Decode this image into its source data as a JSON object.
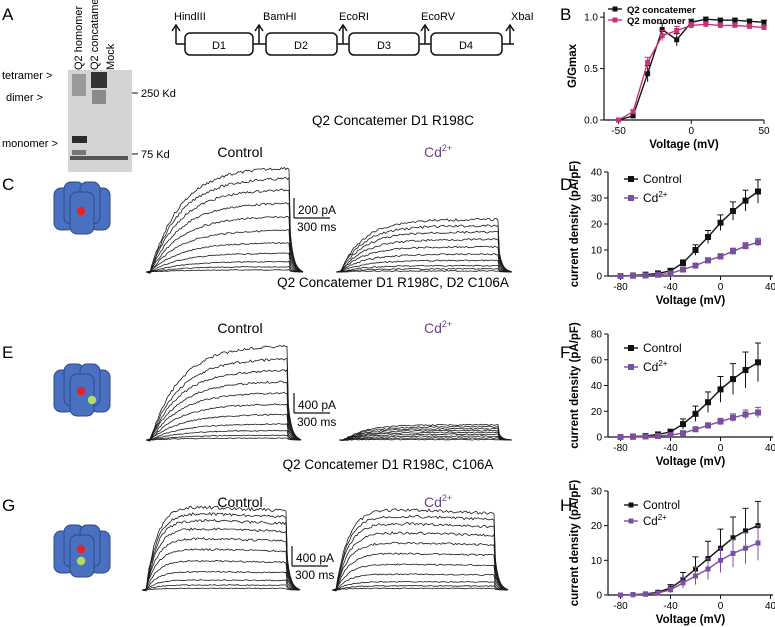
{
  "panels": {
    "A": "A",
    "B": "B",
    "C": "C",
    "D": "D",
    "E": "E",
    "F": "F",
    "G": "G",
    "H": "H"
  },
  "western": {
    "lanes": [
      "Q2 homomer",
      "Q2 concatamer",
      "Mock"
    ],
    "band_labels": [
      "tetramer >",
      "dimer >",
      "monomer >"
    ],
    "markers": [
      "250 Kd",
      "75 Kd"
    ]
  },
  "construct": {
    "sites": [
      "HindIII",
      "BamHI",
      "EcoRI",
      "EcoRV",
      "XbaI"
    ],
    "domains": [
      "D1",
      "D2",
      "D3",
      "D4"
    ]
  },
  "traces": [
    {
      "title": "Q2 Concatemer D1 R198C",
      "control_label": "Control",
      "cd_label": "Cd",
      "cd_sup": "2+",
      "scale_current": "200 pA",
      "scale_time": "300 ms",
      "control_sweeps": [
        0.02,
        0.05,
        0.1,
        0.18,
        0.28,
        0.4,
        0.53,
        0.66,
        0.79,
        0.9,
        1.0
      ],
      "cd_sweeps": [
        0.01,
        0.03,
        0.06,
        0.11,
        0.17,
        0.24,
        0.31,
        0.38,
        0.44,
        0.5
      ]
    },
    {
      "title": "Q2 Concatemer D1 R198C, D2 C106A",
      "control_label": "Control",
      "cd_label": "Cd",
      "cd_sup": "2+",
      "scale_current": "400 pA",
      "scale_time": "300 ms",
      "control_sweeps": [
        0.02,
        0.05,
        0.1,
        0.17,
        0.27,
        0.38,
        0.5,
        0.62,
        0.74,
        0.86,
        1.0
      ],
      "cd_sweeps": [
        0.005,
        0.02,
        0.04,
        0.06,
        0.08,
        0.1,
        0.12,
        0.14,
        0.16
      ]
    },
    {
      "title": "Q2 Concatemer D1 R198C, C106A",
      "control_label": "Control",
      "cd_label": "Cd",
      "cd_sup": "2+",
      "scale_current": "400 pA",
      "scale_time": "300 ms",
      "control_sweeps": [
        0.02,
        0.06,
        0.12,
        0.22,
        0.35,
        0.49,
        0.62,
        0.74,
        0.84,
        0.92,
        1.0
      ],
      "cd_sweeps": [
        0.02,
        0.05,
        0.1,
        0.19,
        0.31,
        0.44,
        0.57,
        0.69,
        0.8,
        0.89,
        0.97
      ]
    }
  ],
  "chart_data": [
    {
      "panel": "B",
      "type": "line",
      "title": "",
      "xlabel": "Voltage (mV)",
      "ylabel": "G/Gmax",
      "xlim": [
        -60,
        50
      ],
      "ylim": [
        0,
        1.05
      ],
      "xticks": [
        -50,
        0,
        50
      ],
      "yticks": [
        0.0,
        0.5,
        1.0
      ],
      "ytick_labels": [
        "0.0",
        "0.5",
        "1.0"
      ],
      "x": [
        -50,
        -40,
        -30,
        -20,
        -10,
        0,
        10,
        20,
        30,
        40,
        50
      ],
      "series": [
        {
          "name": "Q2 concatemer",
          "color": "#111111",
          "marker": "square",
          "values": [
            0.0,
            0.04,
            0.45,
            0.88,
            0.78,
            0.95,
            0.98,
            0.97,
            0.97,
            0.96,
            0.95
          ],
          "errors": [
            0,
            0.02,
            0.08,
            0.06,
            0.06,
            0.03,
            0.02,
            0.02,
            0.02,
            0.02,
            0.02
          ]
        },
        {
          "name": "Q2 monomer",
          "color": "#c8327a",
          "marker": "square",
          "values": [
            0.0,
            0.08,
            0.56,
            0.82,
            0.87,
            0.92,
            0.93,
            0.92,
            0.92,
            0.91,
            0.9
          ],
          "errors": [
            0,
            0.02,
            0.05,
            0.05,
            0.04,
            0.03,
            0.02,
            0.02,
            0.02,
            0.02,
            0.02
          ]
        }
      ]
    },
    {
      "panel": "D",
      "type": "line",
      "title": "",
      "xlabel": "Voltage (mV)",
      "ylabel": "current density (pA/pF)",
      "xlim": [
        -90,
        42
      ],
      "ylim": [
        0,
        40
      ],
      "xticks": [
        -80,
        -40,
        0,
        40
      ],
      "yticks": [
        0,
        10,
        20,
        30,
        40
      ],
      "x": [
        -80,
        -70,
        -60,
        -50,
        -40,
        -30,
        -20,
        -10,
        0,
        10,
        20,
        30
      ],
      "series": [
        {
          "name": "Control",
          "color": "#111111",
          "marker": "square",
          "values": [
            0,
            0.2,
            0.5,
            1.0,
            2.0,
            5.0,
            10.0,
            15.0,
            20.5,
            25.0,
            29.0,
            32.5
          ],
          "errors": [
            0.1,
            0.1,
            0.2,
            0.4,
            0.8,
            1.2,
            2.0,
            2.5,
            3.0,
            3.5,
            4.0,
            4.5
          ]
        },
        {
          "name": "Cd",
          "sup": "2+",
          "color": "#7b4fa0",
          "marker": "square",
          "values": [
            0,
            0.1,
            0.2,
            0.5,
            1.0,
            2.5,
            4.0,
            6.0,
            7.5,
            9.5,
            11.5,
            13.0
          ],
          "errors": [
            0.1,
            0.1,
            0.1,
            0.2,
            0.4,
            0.6,
            0.8,
            1.0,
            1.1,
            1.2,
            1.3,
            1.5
          ]
        }
      ]
    },
    {
      "panel": "F",
      "type": "line",
      "title": "",
      "xlabel": "Voltage (mV)",
      "ylabel": "current density (pA/pF)",
      "xlim": [
        -90,
        42
      ],
      "ylim": [
        0,
        80
      ],
      "xticks": [
        -80,
        -40,
        0,
        40
      ],
      "yticks": [
        0,
        20,
        40,
        60,
        80
      ],
      "x": [
        -80,
        -70,
        -60,
        -50,
        -40,
        -30,
        -20,
        -10,
        0,
        10,
        20,
        30
      ],
      "series": [
        {
          "name": "Control",
          "color": "#111111",
          "marker": "square",
          "values": [
            0,
            0.3,
            0.8,
            2.0,
            4.0,
            10.0,
            18.0,
            27.0,
            37.0,
            45.0,
            52.0,
            58.0
          ],
          "errors": [
            0.2,
            0.2,
            0.4,
            1.0,
            2.0,
            4.0,
            6.0,
            8.0,
            10.0,
            12.0,
            14.0,
            15.0
          ]
        },
        {
          "name": "Cd",
          "sup": "2+",
          "color": "#7b4fa0",
          "marker": "square",
          "values": [
            0,
            0.2,
            0.4,
            0.8,
            1.5,
            3.0,
            6.0,
            9.0,
            12.0,
            15.0,
            17.5,
            19.0
          ],
          "errors": [
            0.1,
            0.1,
            0.2,
            0.3,
            0.6,
            1.0,
            1.5,
            2.0,
            2.5,
            3.0,
            3.5,
            4.0
          ]
        }
      ]
    },
    {
      "panel": "H",
      "type": "line",
      "title": "",
      "xlabel": "Voltage (mV)",
      "ylabel": "current density (pA/pF)",
      "xlim": [
        -90,
        42
      ],
      "ylim": [
        0,
        30
      ],
      "xticks": [
        -80,
        -40,
        0,
        40
      ],
      "yticks": [
        0,
        10,
        20,
        30
      ],
      "x": [
        -80,
        -70,
        -60,
        -50,
        -40,
        -30,
        -20,
        -10,
        0,
        10,
        20,
        30
      ],
      "series": [
        {
          "name": "Control",
          "color": "#111111",
          "marker": "square",
          "values": [
            0,
            0.1,
            0.3,
            0.8,
            2.0,
            4.5,
            7.5,
            10.5,
            13.5,
            16.5,
            18.5,
            20.0
          ],
          "errors": [
            0.1,
            0.1,
            0.2,
            0.4,
            1.0,
            2.0,
            3.5,
            5.0,
            5.5,
            6.0,
            6.5,
            7.0
          ]
        },
        {
          "name": "Cd",
          "sup": "2+",
          "color": "#7b4fa0",
          "marker": "square",
          "values": [
            0,
            0.1,
            0.2,
            0.6,
            1.5,
            3.5,
            5.5,
            7.5,
            10.0,
            12.0,
            13.5,
            15.0
          ],
          "errors": [
            0.1,
            0.1,
            0.2,
            0.4,
            0.8,
            1.5,
            2.5,
            3.0,
            3.5,
            4.0,
            4.5,
            5.0
          ]
        }
      ]
    }
  ]
}
